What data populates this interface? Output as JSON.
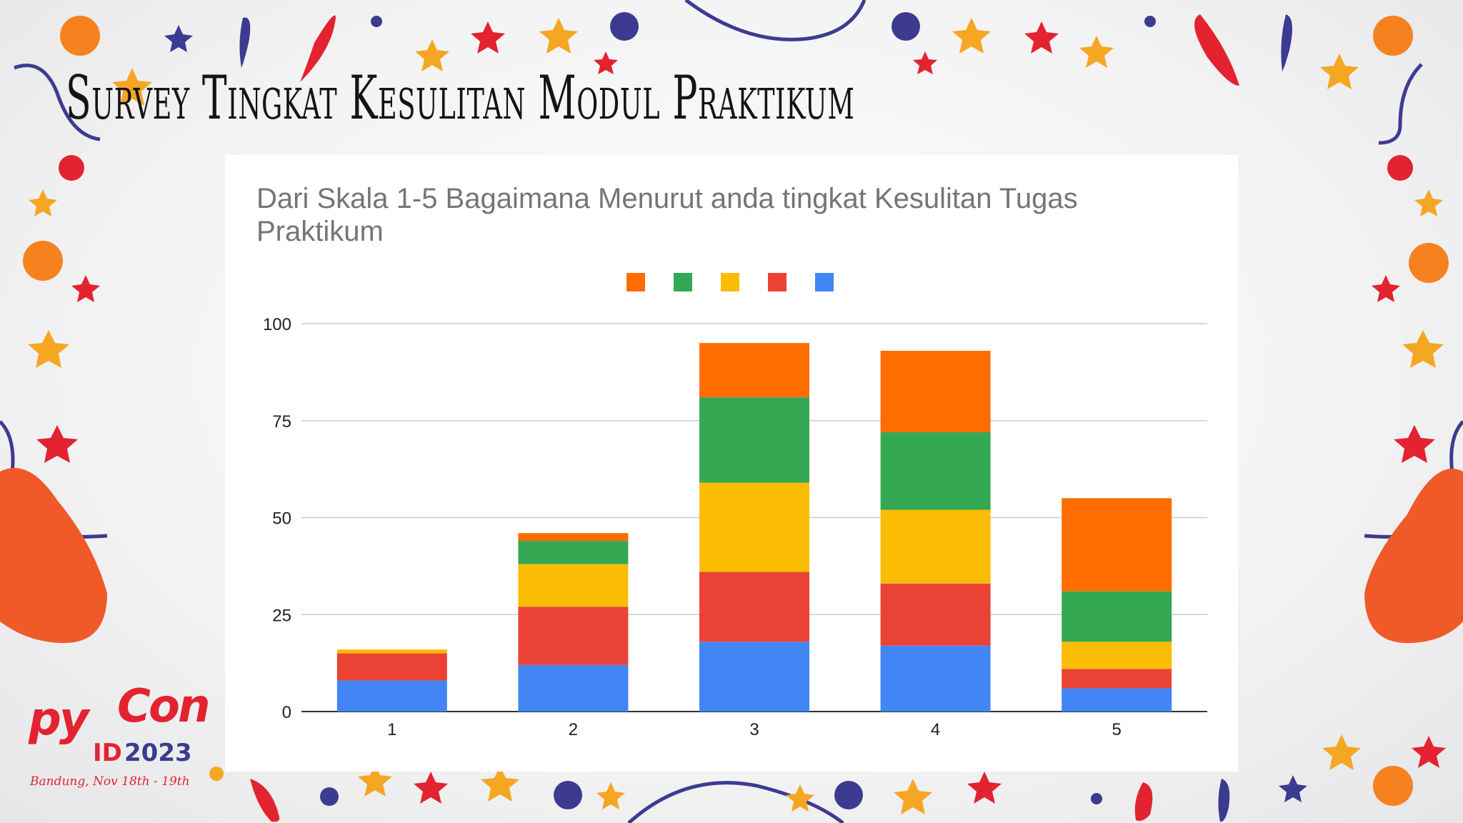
{
  "slide": {
    "title": "Survey Tingkat Kesulitan Modul Praktikum"
  },
  "logo": {
    "py": "py",
    "con": "Con",
    "id": "ID",
    "year": "2023",
    "subtitle": "Bandung, Nov 18th - 19th"
  },
  "colors": {
    "orange": "#ff6d01",
    "green": "#34a853",
    "yellow": "#fbbc04",
    "red": "#ea4335",
    "blue": "#4285f4"
  },
  "chart_data": {
    "type": "bar",
    "stacked": true,
    "title": "Dari Skala 1-5 Bagaimana Menurut anda tingkat Kesulitan Tugas Praktikum",
    "categories": [
      "1",
      "2",
      "3",
      "4",
      "5"
    ],
    "ylim": [
      0,
      100
    ],
    "yticks": [
      0,
      25,
      50,
      75,
      100
    ],
    "grid": true,
    "legend_position": "top",
    "series": [
      {
        "color": "#4285f4",
        "values": [
          8,
          12,
          18,
          17,
          6
        ]
      },
      {
        "color": "#ea4335",
        "values": [
          7,
          15,
          18,
          16,
          5
        ]
      },
      {
        "color": "#fbbc04",
        "values": [
          1,
          11,
          23,
          19,
          7
        ]
      },
      {
        "color": "#34a853",
        "values": [
          0,
          6,
          22,
          20,
          13
        ]
      },
      {
        "color": "#ff6d01",
        "values": [
          0,
          2,
          14,
          21,
          24
        ]
      }
    ]
  }
}
